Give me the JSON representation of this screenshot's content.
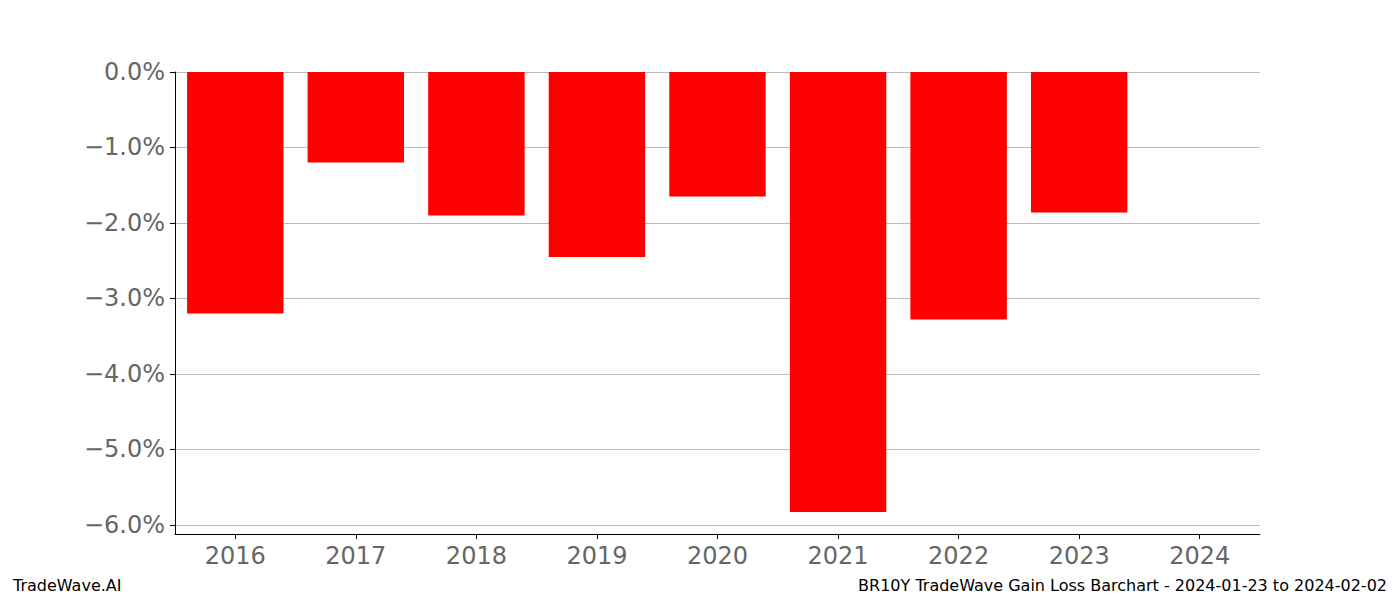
{
  "chart_data": {
    "type": "bar",
    "title": "BR10Y TradeWave Gain Loss Barchart - 2024-01-23 to 2024-02-02",
    "annotations": [
      "TradeWave.AI"
    ],
    "categories": [
      "2016",
      "2017",
      "2018",
      "2019",
      "2020",
      "2021",
      "2022",
      "2023",
      "2024"
    ],
    "values": [
      -3.2,
      -1.2,
      -1.9,
      -2.45,
      -1.65,
      -5.83,
      -3.28,
      -1.86,
      null
    ],
    "color": "#ff0000",
    "ylim": [
      -6.12,
      0
    ],
    "yticks": [
      {
        "value": -6,
        "label": "−6.0%"
      },
      {
        "value": -5,
        "label": "−5.0%"
      },
      {
        "value": -4,
        "label": "−4.0%"
      },
      {
        "value": -3,
        "label": "−3.0%"
      },
      {
        "value": -2,
        "label": "−2.0%"
      },
      {
        "value": -1,
        "label": "−1.0%"
      },
      {
        "value": 0,
        "label": "0.0%"
      }
    ],
    "grid": true
  }
}
